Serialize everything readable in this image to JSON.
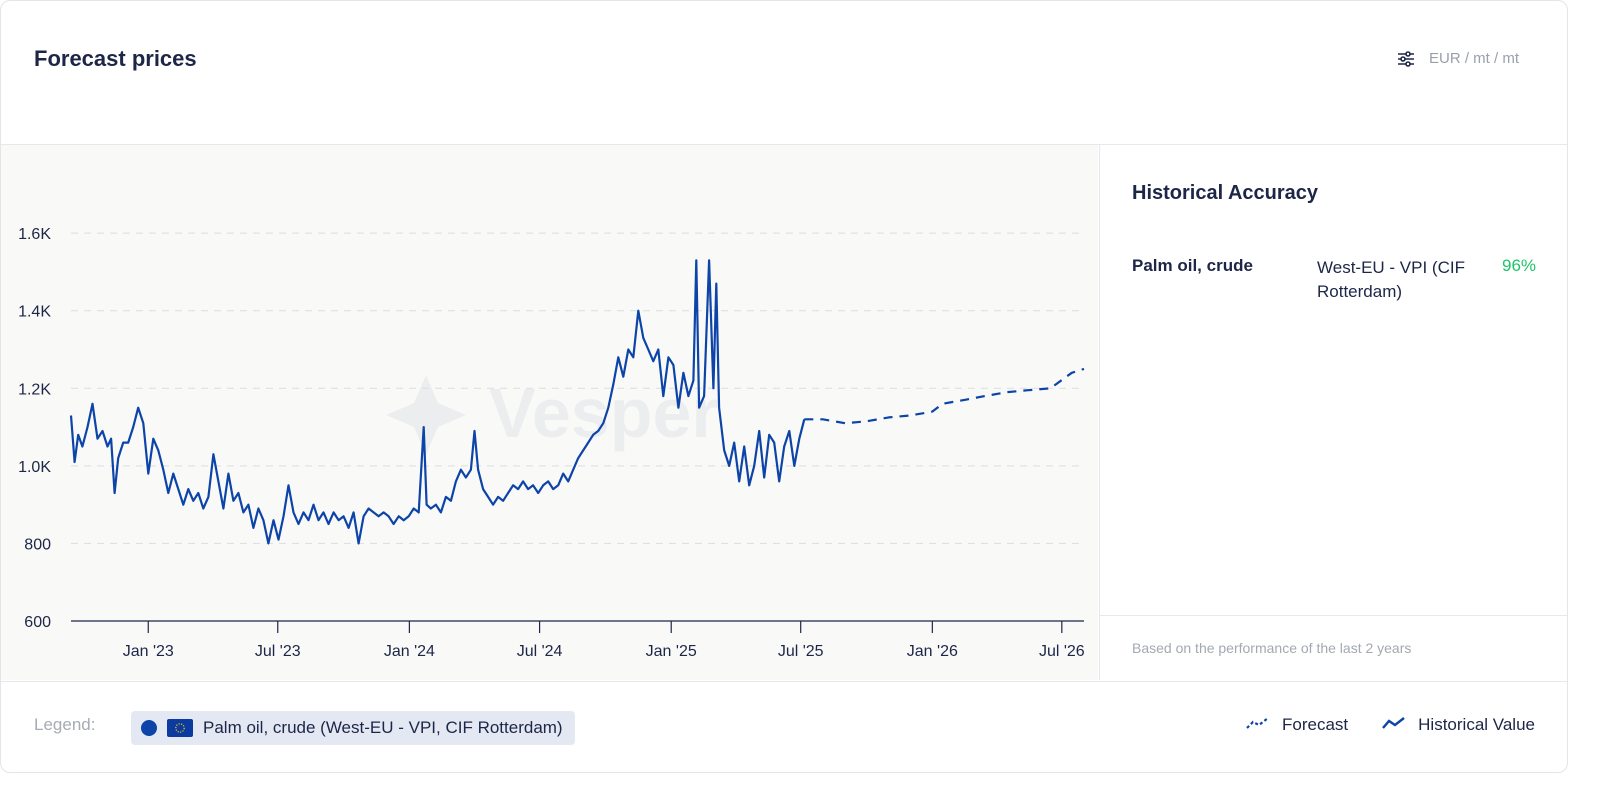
{
  "header": {
    "title": "Forecast prices",
    "units": "EUR / mt / mt",
    "units_icon": "sliders-icon"
  },
  "side": {
    "title": "Historical Accuracy",
    "item_name": "Palm oil, crude",
    "item_region": "West-EU - VPI (CIF Rotterdam)",
    "item_accuracy": "96%",
    "note": "Based on the performance of the last 2 years"
  },
  "legend": {
    "label": "Legend:",
    "series_label": "Palm oil, crude (West-EU - VPI, CIF Rotterdam)",
    "forecast_label": "Forecast",
    "historical_label": "Historical Value"
  },
  "colors": {
    "line": "#0d44a8",
    "accuracy": "#1fc46a"
  },
  "chart_data": {
    "type": "line",
    "title": "",
    "xlabel": "",
    "ylabel": "",
    "ylim": [
      600,
      1750
    ],
    "x_range": [
      "2022-09-15",
      "2026-08-01"
    ],
    "yticks": [
      600,
      800,
      1000,
      1200,
      1400,
      1600
    ],
    "ytick_labels": [
      "600",
      "800",
      "1.0K",
      "1.2K",
      "1.4K",
      "1.6K"
    ],
    "xticks": [
      "2023-01-01",
      "2023-07-01",
      "2024-01-01",
      "2024-07-01",
      "2025-01-01",
      "2025-07-01",
      "2026-01-01",
      "2026-07-01"
    ],
    "xtick_labels": [
      "Jan '23",
      "Jul '23",
      "Jan '24",
      "Jul '24",
      "Jan '25",
      "Jul '25",
      "Jan '26",
      "Jul '26"
    ],
    "grid": true,
    "series": [
      {
        "name": "Historical Value",
        "style": "solid",
        "points": [
          [
            "2022-09-15",
            1130
          ],
          [
            "2022-09-20",
            1010
          ],
          [
            "2022-09-25",
            1080
          ],
          [
            "2022-10-01",
            1050
          ],
          [
            "2022-10-08",
            1100
          ],
          [
            "2022-10-15",
            1160
          ],
          [
            "2022-10-22",
            1070
          ],
          [
            "2022-10-29",
            1090
          ],
          [
            "2022-11-05",
            1050
          ],
          [
            "2022-11-10",
            1070
          ],
          [
            "2022-11-15",
            930
          ],
          [
            "2022-11-20",
            1020
          ],
          [
            "2022-11-27",
            1060
          ],
          [
            "2022-12-04",
            1060
          ],
          [
            "2022-12-11",
            1100
          ],
          [
            "2022-12-18",
            1150
          ],
          [
            "2022-12-25",
            1110
          ],
          [
            "2023-01-01",
            980
          ],
          [
            "2023-01-08",
            1070
          ],
          [
            "2023-01-15",
            1040
          ],
          [
            "2023-01-22",
            990
          ],
          [
            "2023-01-29",
            930
          ],
          [
            "2023-02-05",
            980
          ],
          [
            "2023-02-12",
            940
          ],
          [
            "2023-02-19",
            900
          ],
          [
            "2023-02-26",
            940
          ],
          [
            "2023-03-05",
            910
          ],
          [
            "2023-03-12",
            930
          ],
          [
            "2023-03-19",
            890
          ],
          [
            "2023-03-26",
            920
          ],
          [
            "2023-04-02",
            1030
          ],
          [
            "2023-04-09",
            960
          ],
          [
            "2023-04-16",
            890
          ],
          [
            "2023-04-23",
            980
          ],
          [
            "2023-04-30",
            910
          ],
          [
            "2023-05-07",
            930
          ],
          [
            "2023-05-14",
            880
          ],
          [
            "2023-05-21",
            900
          ],
          [
            "2023-05-28",
            840
          ],
          [
            "2023-06-04",
            890
          ],
          [
            "2023-06-11",
            860
          ],
          [
            "2023-06-18",
            800
          ],
          [
            "2023-06-25",
            860
          ],
          [
            "2023-07-02",
            810
          ],
          [
            "2023-07-09",
            870
          ],
          [
            "2023-07-16",
            950
          ],
          [
            "2023-07-23",
            880
          ],
          [
            "2023-07-30",
            850
          ],
          [
            "2023-08-06",
            880
          ],
          [
            "2023-08-13",
            860
          ],
          [
            "2023-08-20",
            900
          ],
          [
            "2023-08-27",
            860
          ],
          [
            "2023-09-03",
            880
          ],
          [
            "2023-09-10",
            850
          ],
          [
            "2023-09-17",
            880
          ],
          [
            "2023-09-24",
            860
          ],
          [
            "2023-10-01",
            870
          ],
          [
            "2023-10-08",
            840
          ],
          [
            "2023-10-15",
            880
          ],
          [
            "2023-10-22",
            800
          ],
          [
            "2023-10-29",
            870
          ],
          [
            "2023-11-05",
            890
          ],
          [
            "2023-11-12",
            880
          ],
          [
            "2023-11-19",
            870
          ],
          [
            "2023-11-26",
            880
          ],
          [
            "2023-12-03",
            870
          ],
          [
            "2023-12-10",
            850
          ],
          [
            "2023-12-17",
            870
          ],
          [
            "2023-12-24",
            860
          ],
          [
            "2023-12-31",
            870
          ],
          [
            "2024-01-07",
            890
          ],
          [
            "2024-01-14",
            880
          ],
          [
            "2024-01-21",
            1100
          ],
          [
            "2024-01-25",
            900
          ],
          [
            "2024-01-31",
            890
          ],
          [
            "2024-02-07",
            900
          ],
          [
            "2024-02-14",
            880
          ],
          [
            "2024-02-21",
            920
          ],
          [
            "2024-02-28",
            910
          ],
          [
            "2024-03-06",
            960
          ],
          [
            "2024-03-13",
            990
          ],
          [
            "2024-03-20",
            970
          ],
          [
            "2024-03-27",
            990
          ],
          [
            "2024-04-01",
            1090
          ],
          [
            "2024-04-06",
            990
          ],
          [
            "2024-04-13",
            940
          ],
          [
            "2024-04-20",
            920
          ],
          [
            "2024-04-27",
            900
          ],
          [
            "2024-05-04",
            920
          ],
          [
            "2024-05-11",
            910
          ],
          [
            "2024-05-18",
            930
          ],
          [
            "2024-05-25",
            950
          ],
          [
            "2024-06-01",
            940
          ],
          [
            "2024-06-08",
            960
          ],
          [
            "2024-06-15",
            940
          ],
          [
            "2024-06-22",
            950
          ],
          [
            "2024-06-29",
            930
          ],
          [
            "2024-07-06",
            950
          ],
          [
            "2024-07-13",
            960
          ],
          [
            "2024-07-20",
            940
          ],
          [
            "2024-07-27",
            950
          ],
          [
            "2024-08-03",
            980
          ],
          [
            "2024-08-10",
            960
          ],
          [
            "2024-08-17",
            990
          ],
          [
            "2024-08-24",
            1020
          ],
          [
            "2024-08-31",
            1040
          ],
          [
            "2024-09-07",
            1060
          ],
          [
            "2024-09-14",
            1080
          ],
          [
            "2024-09-21",
            1090
          ],
          [
            "2024-09-28",
            1110
          ],
          [
            "2024-10-05",
            1150
          ],
          [
            "2024-10-12",
            1210
          ],
          [
            "2024-10-19",
            1280
          ],
          [
            "2024-10-26",
            1230
          ],
          [
            "2024-11-02",
            1300
          ],
          [
            "2024-11-09",
            1280
          ],
          [
            "2024-11-16",
            1400
          ],
          [
            "2024-11-23",
            1330
          ],
          [
            "2024-11-30",
            1300
          ],
          [
            "2024-12-07",
            1270
          ],
          [
            "2024-12-14",
            1300
          ],
          [
            "2024-12-21",
            1180
          ],
          [
            "2024-12-28",
            1280
          ],
          [
            "2025-01-04",
            1260
          ],
          [
            "2025-01-11",
            1150
          ],
          [
            "2025-01-18",
            1240
          ],
          [
            "2025-01-25",
            1180
          ],
          [
            "2025-02-01",
            1220
          ],
          [
            "2025-02-05",
            1530
          ],
          [
            "2025-02-09",
            1150
          ],
          [
            "2025-02-16",
            1180
          ],
          [
            "2025-02-23",
            1530
          ],
          [
            "2025-03-01",
            1200
          ],
          [
            "2025-03-05",
            1470
          ],
          [
            "2025-03-09",
            1150
          ],
          [
            "2025-03-16",
            1040
          ],
          [
            "2025-03-23",
            1000
          ],
          [
            "2025-03-30",
            1060
          ],
          [
            "2025-04-06",
            960
          ],
          [
            "2025-04-13",
            1050
          ],
          [
            "2025-04-20",
            950
          ],
          [
            "2025-04-27",
            1000
          ],
          [
            "2025-05-04",
            1090
          ],
          [
            "2025-05-11",
            970
          ],
          [
            "2025-05-18",
            1080
          ],
          [
            "2025-05-25",
            1060
          ],
          [
            "2025-06-01",
            960
          ],
          [
            "2025-06-08",
            1050
          ],
          [
            "2025-06-15",
            1090
          ],
          [
            "2025-06-22",
            1000
          ],
          [
            "2025-06-29",
            1070
          ],
          [
            "2025-07-06",
            1120
          ]
        ]
      },
      {
        "name": "Forecast",
        "style": "dashed",
        "points": [
          [
            "2025-07-06",
            1120
          ],
          [
            "2025-08-01",
            1120
          ],
          [
            "2025-09-01",
            1110
          ],
          [
            "2025-10-01",
            1115
          ],
          [
            "2025-11-01",
            1125
          ],
          [
            "2025-12-01",
            1130
          ],
          [
            "2026-01-01",
            1140
          ],
          [
            "2026-01-15",
            1160
          ],
          [
            "2026-02-15",
            1170
          ],
          [
            "2026-03-15",
            1180
          ],
          [
            "2026-04-15",
            1190
          ],
          [
            "2026-05-15",
            1195
          ],
          [
            "2026-06-15",
            1200
          ],
          [
            "2026-07-15",
            1240
          ],
          [
            "2026-08-01",
            1250
          ]
        ]
      }
    ]
  }
}
